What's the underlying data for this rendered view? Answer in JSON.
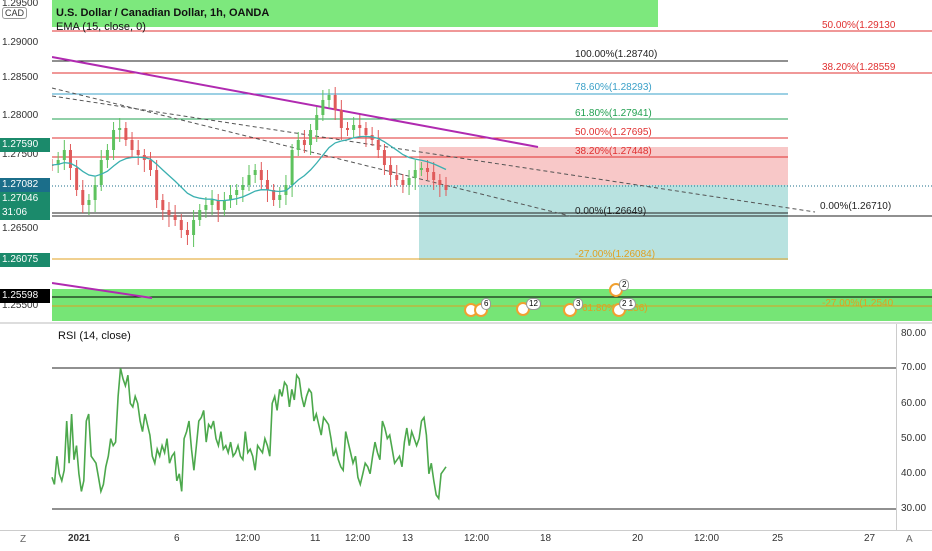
{
  "header": {
    "symbol_title": "U.S. Dollar / Canadian Dollar, 1h, OANDA",
    "indicator_label": "EMA (15, close, 0)",
    "currency_label": "CAD"
  },
  "left_axis": {
    "ticks": [
      "1.29500",
      "1.29000",
      "1.28500",
      "1.28000",
      "1.27500",
      "1.26500",
      "1.25500"
    ],
    "tags": [
      {
        "text": "1.27590",
        "color": "#1b8a6b"
      },
      {
        "text": "1.27082",
        "color": "#1b6e8a"
      },
      {
        "text": "1.27046",
        "color": "#1b8a6b"
      },
      {
        "text": "31:06",
        "color": "#1b8a6b"
      },
      {
        "text": "1.26075",
        "color": "#1b8a6b"
      },
      {
        "text": "1.25598",
        "color": "#000000"
      }
    ]
  },
  "fib_levels": [
    {
      "text": "50.00%(1.29130",
      "color": "#e03030"
    },
    {
      "text": "100.00%(1.28740)",
      "color": "#222222"
    },
    {
      "text": "38.20%(1.28559",
      "color": "#e03030"
    },
    {
      "text": "78.60%(1.28293)",
      "color": "#3aa0c8"
    },
    {
      "text": "61.80%(1.27941)",
      "color": "#22a050"
    },
    {
      "text": "50.00%(1.27695)",
      "color": "#e03030"
    },
    {
      "text": "38.20%(1.27448)",
      "color": "#e03030"
    },
    {
      "text": "0.00%(1.26649)",
      "color": "#222222"
    },
    {
      "text": "0.00%(1.26710)",
      "color": "#222222"
    },
    {
      "text": "-27.00%(1.26084)",
      "color": "#e0a020"
    },
    {
      "text": "-27.00%(1.2540",
      "color": "#e0a020"
    },
    {
      "text": "61.80%(1.256)",
      "color": "#e0a020"
    }
  ],
  "events": [
    {
      "count": "6"
    },
    {
      "count": "12"
    },
    {
      "count": "3"
    },
    {
      "count": "2"
    },
    {
      "count": "2 1"
    }
  ],
  "rsi": {
    "label": "RSI (14, close)",
    "ticks": [
      "80.00",
      "70.00",
      "60.00",
      "50.00",
      "40.00",
      "30.00"
    ],
    "values": [
      39,
      37,
      45,
      40,
      38,
      41,
      55,
      43,
      57,
      44,
      48,
      40,
      35,
      38,
      55,
      57,
      45,
      44,
      43,
      39,
      35,
      37,
      42,
      45,
      50,
      48,
      49,
      62,
      70,
      67,
      65,
      68,
      60,
      59,
      62,
      60,
      55,
      52,
      57,
      54,
      51,
      45,
      43,
      47,
      45,
      48,
      46,
      50,
      43,
      45,
      46,
      38,
      40,
      35,
      50,
      52,
      55,
      47,
      41,
      48,
      55,
      56,
      58,
      49,
      54,
      53,
      55,
      50,
      48,
      52,
      47,
      48,
      46,
      49,
      45,
      46,
      48,
      45,
      44,
      52,
      46,
      47,
      45,
      41,
      48,
      47,
      46,
      50,
      48,
      45,
      60,
      62,
      58,
      64,
      62,
      66,
      65,
      59,
      64,
      61,
      68,
      67,
      62,
      59,
      62,
      64,
      63,
      55,
      57,
      54,
      51,
      56,
      55,
      54,
      50,
      45,
      47,
      44,
      42,
      41,
      52,
      49,
      46,
      43,
      45,
      39,
      37,
      40,
      43,
      42,
      40,
      45,
      49,
      46,
      44,
      55,
      53,
      50,
      51,
      47,
      43,
      44,
      45,
      42,
      49,
      53,
      48,
      52,
      50,
      48,
      50,
      55,
      56,
      51,
      40,
      43,
      38,
      34,
      33,
      40,
      41,
      42
    ]
  },
  "bottom_axis": {
    "ticks": [
      "2021",
      "6",
      "12:00",
      "11",
      "12:00",
      "13",
      "12:00",
      "18",
      "20",
      "12:00",
      "25",
      "27"
    ],
    "left_icon": "Z",
    "right_icon": "A"
  },
  "colors": {
    "header_bg": "#7de87d",
    "candle_up": "#5ec25e",
    "candle_down": "#e05a5a",
    "ema": "#3ab0b0",
    "rsi": "#4ca84c",
    "trendline": "#b02ab0",
    "zone_red": "#f8c8c8",
    "zone_teal": "#b8e2e0",
    "green_band": "#5ee05e"
  },
  "icon_names": [
    "canada-flag-icon",
    "us-flag-icon",
    "z-icon",
    "a-icon"
  ]
}
